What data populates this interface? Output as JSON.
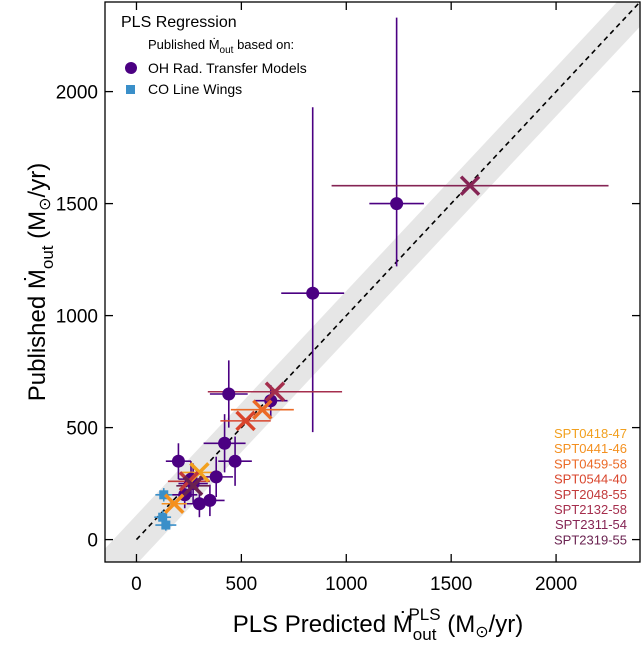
{
  "chart_data": {
    "type": "scatter",
    "xlim": [
      -150,
      2400
    ],
    "ylim": [
      -100,
      2400
    ],
    "xticks": [
      0,
      500,
      1000,
      1500,
      2000
    ],
    "yticks": [
      0,
      500,
      1000,
      1500,
      2000
    ],
    "xlabel": {
      "prefix": "PLS Predicted Ṁ",
      "sub": "out",
      "sup": "PLS",
      "suffix_pre": " (M",
      "sun": "⊙",
      "suffix_post": "/yr)"
    },
    "ylabel": {
      "prefix": "Published Ṁ",
      "sub": "out",
      "suffix_pre": " (M",
      "sun": "⊙",
      "suffix_post": "/yr)"
    },
    "one_to_one_line": {
      "x": [
        0,
        2400
      ],
      "y": [
        0,
        2400
      ],
      "band_halfwidth": 110
    },
    "legend": {
      "position": "top-left",
      "title": "PLS Regression",
      "subtitle_prefix": "Published Ṁ",
      "subtitle_sub": "out",
      "subtitle_suffix": " based on:",
      "entries": [
        {
          "label": "OH Rad. Transfer Models",
          "marker": "circle",
          "color": "#4B0082"
        },
        {
          "label": "CO Line Wings",
          "marker": "square",
          "color": "#3A8FC9"
        }
      ]
    },
    "oh_points": {
      "name": "OH Rad. Transfer Models",
      "color": "#4B0082",
      "points": [
        {
          "x": 1240,
          "y": 1500,
          "xerr": 130,
          "yerr_lo": 280,
          "yerr_hi": 830
        },
        {
          "x": 840,
          "y": 1100,
          "xerr": 150,
          "yerr_lo": 620,
          "yerr_hi": 830
        },
        {
          "x": 640,
          "y": 620,
          "xerr": 80,
          "yerr_lo": 70,
          "yerr_hi": 70
        },
        {
          "x": 440,
          "y": 650,
          "xerr": 90,
          "yerr_lo": 150,
          "yerr_hi": 150
        },
        {
          "x": 420,
          "y": 430,
          "xerr": 100,
          "yerr_lo": 130,
          "yerr_hi": 130
        },
        {
          "x": 470,
          "y": 350,
          "xerr": 80,
          "yerr_lo": 110,
          "yerr_hi": 110
        },
        {
          "x": 380,
          "y": 280,
          "xerr": 80,
          "yerr_lo": 90,
          "yerr_hi": 90
        },
        {
          "x": 350,
          "y": 175,
          "xerr": 70,
          "yerr_lo": 70,
          "yerr_hi": 70
        },
        {
          "x": 300,
          "y": 160,
          "xerr": 60,
          "yerr_lo": 60,
          "yerr_hi": 60
        },
        {
          "x": 270,
          "y": 250,
          "xerr": 70,
          "yerr_lo": 90,
          "yerr_hi": 90
        },
        {
          "x": 260,
          "y": 270,
          "xerr": 60,
          "yerr_lo": 80,
          "yerr_hi": 80
        },
        {
          "x": 230,
          "y": 200,
          "xerr": 60,
          "yerr_lo": 60,
          "yerr_hi": 60
        },
        {
          "x": 200,
          "y": 350,
          "xerr": 60,
          "yerr_lo": 80,
          "yerr_hi": 80
        }
      ]
    },
    "co_points": {
      "name": "CO Line Wings",
      "color": "#3A8FC9",
      "points": [
        {
          "x": 130,
          "y": 200,
          "xerr": 40,
          "yerr_lo": 30,
          "yerr_hi": 30
        },
        {
          "x": 125,
          "y": 100,
          "xerr": 40,
          "yerr_lo": 30,
          "yerr_hi": 30
        },
        {
          "x": 140,
          "y": 65,
          "xerr": 50,
          "yerr_lo": 25,
          "yerr_hi": 25
        }
      ]
    },
    "pls_points": {
      "marker": "x",
      "points": [
        {
          "label": "SPT0418-47",
          "color": "#F2A01E",
          "x": 300,
          "y": 300,
          "xerr": 90
        },
        {
          "label": "SPT0441-46",
          "color": "#F4901F",
          "x": 180,
          "y": 160,
          "xerr": 60
        },
        {
          "label": "SPT0459-58",
          "color": "#EB6A26",
          "x": 600,
          "y": 580,
          "xerr": 150
        },
        {
          "label": "SPT0544-40",
          "color": "#D9452C",
          "x": 520,
          "y": 530,
          "xerr": 120
        },
        {
          "label": "SPT2048-55",
          "color": "#C23A3A",
          "x": 250,
          "y": 260,
          "xerr": 100
        },
        {
          "label": "SPT2132-58",
          "color": "#A52E4D",
          "x": 660,
          "y": 660,
          "xerr": 320
        },
        {
          "label": "SPT2311-54",
          "color": "#852454",
          "x": 1590,
          "y": 1580,
          "xerr": 660
        },
        {
          "label": "SPT2319-55",
          "color": "#6A2250",
          "x": 270,
          "y": 240,
          "xerr": 80
        }
      ]
    }
  }
}
